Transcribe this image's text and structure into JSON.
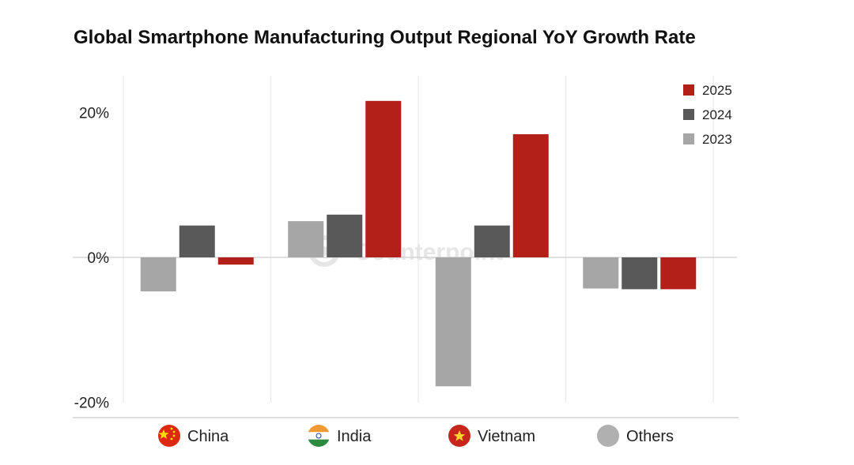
{
  "chart_data": {
    "type": "bar",
    "title": "Global Smartphone Manufacturing Output Regional YoY Growth Rate",
    "xlabel": "",
    "ylabel": "",
    "categories": [
      "China",
      "India",
      "Vietnam",
      "Others"
    ],
    "series": [
      {
        "name": "2023",
        "color": "#a6a6a6",
        "values": [
          -4.7,
          5.0,
          -17.8,
          -4.3
        ]
      },
      {
        "name": "2024",
        "color": "#595959",
        "values": [
          4.4,
          5.9,
          4.4,
          -4.4
        ]
      },
      {
        "name": "2025",
        "color": "#b3201a",
        "values": [
          -1.0,
          21.6,
          17.0,
          -4.4
        ]
      }
    ],
    "ylim": [
      -20,
      25
    ],
    "yticks": [
      {
        "value": 20,
        "label": "20%"
      },
      {
        "value": 0,
        "label": "0%"
      },
      {
        "value": -20,
        "label": "-20%"
      }
    ],
    "legend_order": [
      "2025",
      "2024",
      "2023"
    ],
    "legend_position": "top-right",
    "grid": {
      "vertical": true,
      "horizontal": false
    },
    "category_icons": [
      "china-flag-icon",
      "india-flag-icon",
      "vietnam-flag-icon",
      "globe-icon"
    ],
    "watermark": "Counterpoint"
  }
}
